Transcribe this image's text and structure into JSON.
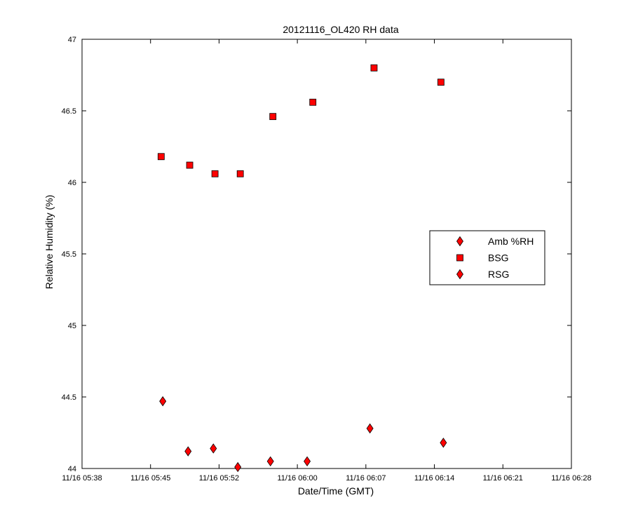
{
  "chart_data": {
    "type": "scatter",
    "title": "20121116_OL420 RH data",
    "xlabel": "Date/Time (GMT)",
    "ylabel": "Relative Humidity (%)",
    "xlim": [
      "11/16 05:38",
      "11/16 06:28"
    ],
    "ylim": [
      44,
      47
    ],
    "x_ticks": [
      "11/16 05:38",
      "11/16 05:45",
      "11/16 05:52",
      "11/16 06:00",
      "11/16 06:07",
      "11/16 06:14",
      "11/16 06:21",
      "11/16 06:28"
    ],
    "y_ticks": [
      "44",
      "44.5",
      "45",
      "45.5",
      "46",
      "46.5",
      "47"
    ],
    "grid": false,
    "legend_position": "center-right",
    "series": [
      {
        "name": "Amb %RH",
        "marker": "diamond",
        "color": "#ff0000",
        "points": []
      },
      {
        "name": "BSG",
        "marker": "square",
        "color": "#ff0000",
        "points": [
          {
            "x": "11/16 05:46:05",
            "y": 46.18
          },
          {
            "x": "11/16 05:49:00",
            "y": 46.12
          },
          {
            "x": "11/16 05:51:35",
            "y": 46.06
          },
          {
            "x": "11/16 05:54:10",
            "y": 46.06
          },
          {
            "x": "11/16 05:57:30",
            "y": 46.46
          },
          {
            "x": "11/16 06:01:35",
            "y": 46.56
          },
          {
            "x": "11/16 06:07:50",
            "y": 46.8
          },
          {
            "x": "11/16 06:14:40",
            "y": 46.7
          }
        ]
      },
      {
        "name": "RSG",
        "marker": "diamond",
        "color": "#ff0000",
        "points": [
          {
            "x": "11/16 05:46:15",
            "y": 44.47
          },
          {
            "x": "11/16 05:48:50",
            "y": 44.12
          },
          {
            "x": "11/16 05:51:25",
            "y": 44.14
          },
          {
            "x": "11/16 05:53:55",
            "y": 44.01
          },
          {
            "x": "11/16 05:57:15",
            "y": 44.05
          },
          {
            "x": "11/16 06:01:00",
            "y": 44.05
          },
          {
            "x": "11/16 06:07:25",
            "y": 44.28
          },
          {
            "x": "11/16 06:14:55",
            "y": 44.18
          }
        ]
      }
    ]
  }
}
